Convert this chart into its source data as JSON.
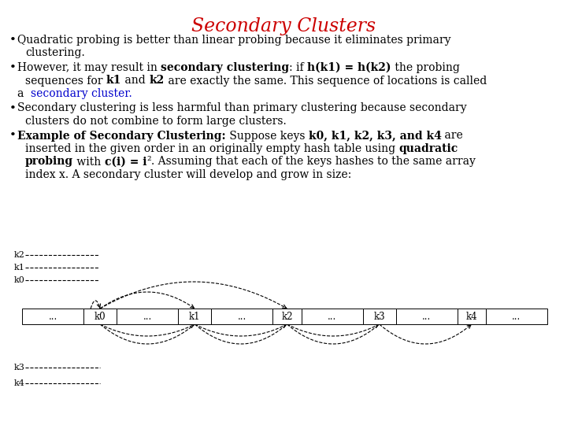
{
  "title": "Secondary Clusters",
  "title_color": "#cc0000",
  "bg_color": "#ffffff",
  "text_color": "#000000",
  "secondary_cluster_color": "#0000cc",
  "fig_width": 7.2,
  "fig_height": 5.4,
  "dpi": 100,
  "table_cells": [
    "...",
    "k0",
    "...",
    "k1",
    "...",
    "k2",
    "...",
    "k3",
    "...",
    "k4",
    "..."
  ],
  "cell_widths_rel": [
    1.3,
    0.7,
    1.3,
    0.7,
    1.3,
    0.6,
    1.3,
    0.7,
    1.3,
    0.6,
    1.3
  ]
}
